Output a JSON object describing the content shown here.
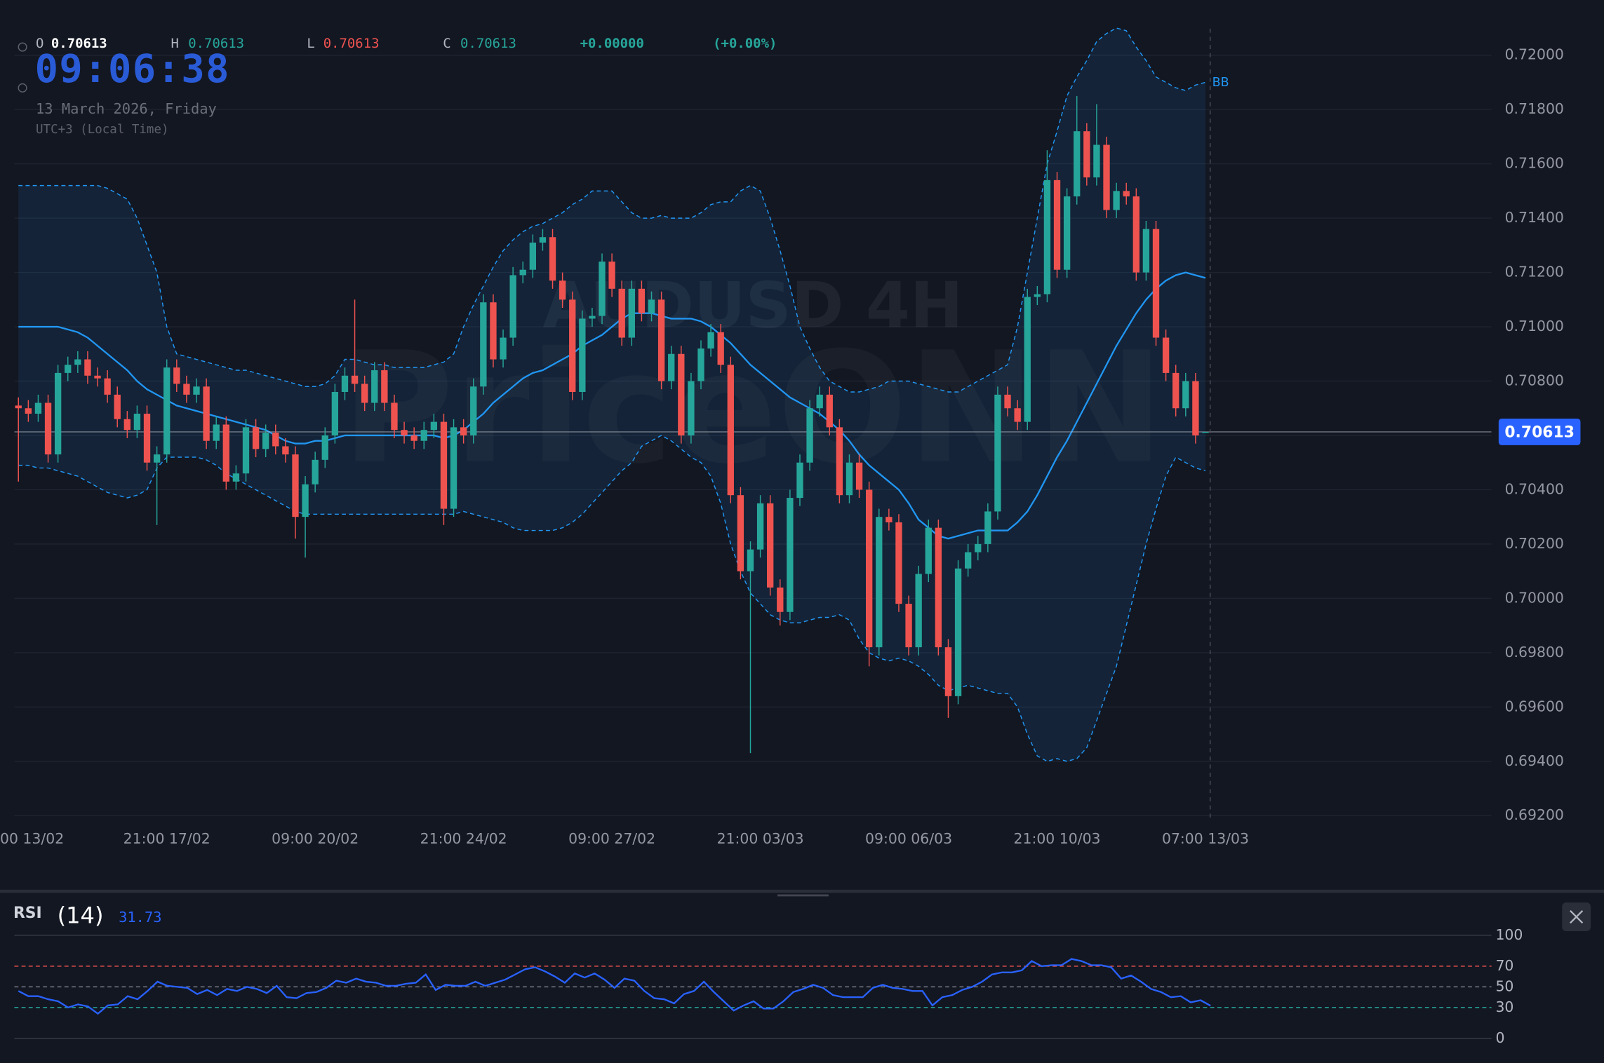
{
  "chart_data": {
    "type": "candlestick",
    "watermark": "AUDUSD 4H",
    "watermark_brand": "PriceONN",
    "ohlc": [
      {
        "name": "O",
        "value": 0.70613
      },
      {
        "name": "H",
        "value": 0.70613
      },
      {
        "name": "L",
        "value": 0.70613
      },
      {
        "name": "C",
        "value": 0.70613
      }
    ],
    "change": {
      "value": 0,
      "label": "+0.00000"
    },
    "change_pct": {
      "value": 0,
      "label": "(+0.00%)"
    },
    "clock": "09:06:38",
    "date": "13 March 2026, Friday",
    "timezone": "UTC+3 (Local Time)",
    "up_color": "#26a69a",
    "down_color": "#ef5350",
    "last_price": 0.70613,
    "ylim": [
      0.692,
      0.72
    ],
    "yticks": [
      {
        "value": 0.692,
        "label": "0.69200"
      },
      {
        "value": 0.694,
        "label": "0.69400"
      },
      {
        "value": 0.696,
        "label": "0.69600"
      },
      {
        "value": 0.698,
        "label": "0.69800"
      },
      {
        "value": 0.7,
        "label": "0.70000"
      },
      {
        "value": 0.702,
        "label": "0.70200"
      },
      {
        "value": 0.704,
        "label": "0.70400"
      },
      {
        "value": 0.706,
        "label": "0.70600"
      },
      {
        "value": 0.708,
        "label": "0.70800"
      },
      {
        "value": 0.71,
        "label": "0.71000"
      },
      {
        "value": 0.712,
        "label": "0.71200"
      },
      {
        "value": 0.714,
        "label": "0.71400"
      },
      {
        "value": 0.716,
        "label": "0.71600"
      },
      {
        "value": 0.718,
        "label": "0.71800"
      },
      {
        "value": 0.72,
        "label": "0.72000"
      }
    ],
    "grid": true,
    "categories": [
      "00 13/02",
      null,
      null,
      null,
      null,
      null,
      null,
      null,
      null,
      null,
      null,
      null,
      null,
      null,
      null,
      "21:00 17/02",
      null,
      null,
      null,
      null,
      null,
      null,
      null,
      null,
      null,
      null,
      null,
      null,
      null,
      null,
      "09:00 20/02",
      null,
      null,
      null,
      null,
      null,
      null,
      null,
      null,
      null,
      null,
      null,
      null,
      null,
      null,
      "21:00 24/02",
      null,
      null,
      null,
      null,
      null,
      null,
      null,
      null,
      null,
      null,
      null,
      null,
      null,
      null,
      "09:00 27/02",
      null,
      null,
      null,
      null,
      null,
      null,
      null,
      null,
      null,
      null,
      null,
      null,
      null,
      null,
      "21:00 03/03",
      null,
      null,
      null,
      null,
      null,
      null,
      null,
      null,
      null,
      null,
      null,
      null,
      null,
      null,
      "09:00 06/03",
      null,
      null,
      null,
      null,
      null,
      null,
      null,
      null,
      null,
      null,
      null,
      null,
      null,
      null,
      "21:00 10/03",
      null,
      null,
      null,
      null,
      null,
      null,
      null,
      null,
      null,
      null,
      null,
      null,
      null,
      null,
      "07:00 13/03"
    ],
    "candles": {
      "open": [
        0.7071,
        0.707,
        0.7068,
        0.7072,
        0.7053,
        0.7083,
        0.7086,
        0.7088,
        0.7082,
        0.7081,
        0.7075,
        0.7066,
        0.7062,
        0.7068,
        0.705,
        0.7053,
        0.7085,
        0.7079,
        0.7075,
        0.7078,
        0.7058,
        0.7064,
        0.7043,
        0.7046,
        0.7063,
        0.7055,
        0.7061,
        0.7056,
        0.7053,
        0.703,
        0.7042,
        0.7051,
        0.706,
        0.7076,
        0.7082,
        0.7079,
        0.7072,
        0.7084,
        0.7072,
        0.7062,
        0.706,
        0.7058,
        0.7062,
        0.7065,
        0.7033,
        0.7063,
        0.706,
        0.7078,
        0.7109,
        0.7088,
        0.7096,
        0.7119,
        0.7121,
        0.7131,
        0.7133,
        0.7117,
        0.711,
        0.7076,
        0.7103,
        0.7104,
        0.7124,
        0.7114,
        0.7096,
        0.7114,
        0.7105,
        0.711,
        0.708,
        0.709,
        0.706,
        0.708,
        0.7092,
        0.7098,
        0.7086,
        0.7038,
        0.701,
        0.7018,
        0.7035,
        0.7004,
        0.6995,
        0.7037,
        0.705,
        0.707,
        0.7075,
        0.7063,
        0.7038,
        0.705,
        0.704,
        0.6982,
        0.703,
        0.7028,
        0.6998,
        0.6982,
        0.7009,
        0.7026,
        0.6982,
        0.6964,
        0.7011,
        0.7017,
        0.702,
        0.7032,
        0.7075,
        0.707,
        0.7065,
        0.7111,
        0.7112,
        0.7154,
        0.7121,
        0.7148,
        0.7172,
        0.7155,
        0.7167,
        0.7143,
        0.715,
        0.7148,
        0.712,
        0.7136,
        0.7096,
        0.7083,
        0.707,
        0.708,
        0.70613
      ],
      "high": [
        0.7074,
        0.7073,
        0.7075,
        0.7075,
        0.7086,
        0.7089,
        0.7091,
        0.7091,
        0.7085,
        0.7084,
        0.7078,
        0.7069,
        0.7071,
        0.7071,
        0.7056,
        0.7088,
        0.7088,
        0.7082,
        0.7081,
        0.7081,
        0.7067,
        0.7067,
        0.7049,
        0.7066,
        0.7066,
        0.7064,
        0.7064,
        0.7059,
        0.7056,
        0.7045,
        0.7054,
        0.7063,
        0.7079,
        0.7085,
        0.711,
        0.7082,
        0.7087,
        0.7087,
        0.7075,
        0.7065,
        0.7063,
        0.7065,
        0.7068,
        0.7068,
        0.7066,
        0.7066,
        0.7081,
        0.7112,
        0.7112,
        0.7099,
        0.7122,
        0.7124,
        0.7134,
        0.7136,
        0.7136,
        0.712,
        0.7113,
        0.7106,
        0.7107,
        0.7127,
        0.7127,
        0.7117,
        0.7117,
        0.7117,
        0.7113,
        0.7113,
        0.7093,
        0.7093,
        0.7083,
        0.7095,
        0.7101,
        0.7101,
        0.7089,
        0.7041,
        0.7021,
        0.7038,
        0.7038,
        0.7007,
        0.704,
        0.7053,
        0.7073,
        0.7078,
        0.7078,
        0.7066,
        0.7053,
        0.7053,
        0.7043,
        0.7033,
        0.7033,
        0.7031,
        0.7001,
        0.7012,
        0.7029,
        0.7029,
        0.6985,
        0.7014,
        0.702,
        0.7023,
        0.7035,
        0.7078,
        0.7078,
        0.7073,
        0.7114,
        0.7115,
        0.7165,
        0.7157,
        0.7151,
        0.7185,
        0.7175,
        0.7182,
        0.717,
        0.7153,
        0.7153,
        0.7151,
        0.7139,
        0.7139,
        0.7099,
        0.7086,
        0.7083,
        0.7083,
        0.70613
      ],
      "low": [
        0.7043,
        0.7065,
        0.7065,
        0.705,
        0.705,
        0.708,
        0.7083,
        0.7079,
        0.7078,
        0.7072,
        0.7063,
        0.7059,
        0.7059,
        0.7047,
        0.7027,
        0.705,
        0.7076,
        0.7072,
        0.7072,
        0.7055,
        0.7055,
        0.704,
        0.704,
        0.7043,
        0.7052,
        0.7052,
        0.7053,
        0.705,
        0.7022,
        0.7015,
        0.7039,
        0.7048,
        0.7057,
        0.7073,
        0.7076,
        0.7069,
        0.7069,
        0.7069,
        0.7059,
        0.7057,
        0.7055,
        0.7055,
        0.7059,
        0.7027,
        0.703,
        0.7057,
        0.7057,
        0.7075,
        0.7085,
        0.7085,
        0.7093,
        0.7116,
        0.7118,
        0.7128,
        0.7114,
        0.7107,
        0.7073,
        0.7073,
        0.71,
        0.7101,
        0.7111,
        0.7093,
        0.7093,
        0.7102,
        0.7102,
        0.7077,
        0.7077,
        0.7057,
        0.7057,
        0.7077,
        0.7089,
        0.7083,
        0.7035,
        0.7007,
        0.6943,
        0.7015,
        0.7001,
        0.699,
        0.6992,
        0.7034,
        0.7047,
        0.7067,
        0.706,
        0.7035,
        0.7035,
        0.7037,
        0.6975,
        0.6979,
        0.7025,
        0.6995,
        0.6979,
        0.6979,
        0.7006,
        0.6979,
        0.6956,
        0.6961,
        0.7008,
        0.7014,
        0.7017,
        0.7029,
        0.7067,
        0.7062,
        0.7062,
        0.7108,
        0.7109,
        0.7118,
        0.7118,
        0.7145,
        0.7152,
        0.7152,
        0.714,
        0.714,
        0.7145,
        0.7117,
        0.7117,
        0.7093,
        0.708,
        0.7067,
        0.7067,
        0.7057,
        0.70613
      ],
      "close": [
        0.707,
        0.7068,
        0.7072,
        0.7053,
        0.7083,
        0.7086,
        0.7088,
        0.7082,
        0.7081,
        0.7075,
        0.7066,
        0.7062,
        0.7068,
        0.705,
        0.7053,
        0.7085,
        0.7079,
        0.7075,
        0.7078,
        0.7058,
        0.7064,
        0.7043,
        0.7046,
        0.7063,
        0.7055,
        0.7061,
        0.7056,
        0.7053,
        0.703,
        0.7042,
        0.7051,
        0.706,
        0.7076,
        0.7082,
        0.7079,
        0.7072,
        0.7084,
        0.7072,
        0.7062,
        0.706,
        0.7058,
        0.7062,
        0.7065,
        0.7033,
        0.7063,
        0.706,
        0.7078,
        0.7109,
        0.7088,
        0.7096,
        0.7119,
        0.7121,
        0.7131,
        0.7133,
        0.7117,
        0.711,
        0.7076,
        0.7103,
        0.7104,
        0.7124,
        0.7114,
        0.7096,
        0.7114,
        0.7105,
        0.711,
        0.708,
        0.709,
        0.706,
        0.708,
        0.7092,
        0.7098,
        0.7086,
        0.7038,
        0.701,
        0.7018,
        0.7035,
        0.7004,
        0.6995,
        0.7037,
        0.705,
        0.707,
        0.7075,
        0.7063,
        0.7038,
        0.705,
        0.704,
        0.6982,
        0.703,
        0.7028,
        0.6998,
        0.6982,
        0.7009,
        0.7026,
        0.6982,
        0.6964,
        0.7011,
        0.7017,
        0.702,
        0.7032,
        0.7075,
        0.707,
        0.7065,
        0.7111,
        0.7112,
        0.7154,
        0.7121,
        0.7148,
        0.7172,
        0.7155,
        0.7167,
        0.7143,
        0.715,
        0.7148,
        0.712,
        0.7136,
        0.7096,
        0.7083,
        0.707,
        0.708,
        0.706,
        0.70613
      ]
    },
    "bollinger": {
      "name": "BB",
      "color": "#2196f3",
      "upper": [
        0.7152,
        0.7152,
        0.7152,
        0.7152,
        0.7152,
        0.7152,
        0.7152,
        0.7152,
        0.7152,
        0.7151,
        0.7149,
        0.7147,
        0.714,
        0.713,
        0.712,
        0.71,
        0.709,
        0.7089,
        0.7088,
        0.7087,
        0.7086,
        0.7085,
        0.7084,
        0.7084,
        0.7083,
        0.7082,
        0.7081,
        0.708,
        0.7079,
        0.7078,
        0.7078,
        0.7079,
        0.7082,
        0.7088,
        0.7088,
        0.7087,
        0.7086,
        0.7086,
        0.7085,
        0.7085,
        0.7085,
        0.7085,
        0.7086,
        0.7087,
        0.709,
        0.71,
        0.7108,
        0.7115,
        0.7122,
        0.7128,
        0.7132,
        0.7135,
        0.7137,
        0.7138,
        0.714,
        0.7142,
        0.7145,
        0.7147,
        0.715,
        0.715,
        0.715,
        0.7146,
        0.7142,
        0.714,
        0.714,
        0.7141,
        0.714,
        0.714,
        0.714,
        0.7142,
        0.7145,
        0.7146,
        0.7146,
        0.715,
        0.7152,
        0.715,
        0.714,
        0.7128,
        0.7115,
        0.71,
        0.7092,
        0.7085,
        0.708,
        0.7078,
        0.7076,
        0.7076,
        0.7077,
        0.7078,
        0.708,
        0.708,
        0.708,
        0.7079,
        0.7078,
        0.7077,
        0.7076,
        0.7076,
        0.7078,
        0.708,
        0.7082,
        0.7084,
        0.7086,
        0.71,
        0.712,
        0.714,
        0.716,
        0.7172,
        0.7185,
        0.7192,
        0.7198,
        0.7205,
        0.7208,
        0.721,
        0.7209,
        0.7203,
        0.7198,
        0.7192,
        0.719,
        0.7188,
        0.7187,
        0.7189,
        0.719
      ],
      "middle": [
        0.71,
        0.71,
        0.71,
        0.71,
        0.71,
        0.7099,
        0.7098,
        0.7096,
        0.7093,
        0.709,
        0.7087,
        0.7084,
        0.708,
        0.7077,
        0.7075,
        0.7073,
        0.7071,
        0.707,
        0.7069,
        0.7068,
        0.7067,
        0.7066,
        0.7065,
        0.7064,
        0.7063,
        0.7062,
        0.706,
        0.7058,
        0.7057,
        0.7057,
        0.7058,
        0.7058,
        0.7059,
        0.706,
        0.706,
        0.706,
        0.706,
        0.706,
        0.706,
        0.706,
        0.706,
        0.706,
        0.706,
        0.7059,
        0.706,
        0.7062,
        0.7065,
        0.7068,
        0.7072,
        0.7075,
        0.7078,
        0.7081,
        0.7083,
        0.7084,
        0.7086,
        0.7088,
        0.709,
        0.7093,
        0.7095,
        0.7097,
        0.71,
        0.7103,
        0.7105,
        0.7105,
        0.7105,
        0.7104,
        0.7103,
        0.7103,
        0.7103,
        0.7102,
        0.71,
        0.7097,
        0.7094,
        0.709,
        0.7086,
        0.7083,
        0.708,
        0.7077,
        0.7074,
        0.7072,
        0.707,
        0.7068,
        0.7065,
        0.7062,
        0.7058,
        0.7053,
        0.7049,
        0.7046,
        0.7043,
        0.704,
        0.7035,
        0.7029,
        0.7026,
        0.7023,
        0.7022,
        0.7023,
        0.7024,
        0.7025,
        0.7025,
        0.7025,
        0.7025,
        0.7028,
        0.7032,
        0.7038,
        0.7045,
        0.7052,
        0.7058,
        0.7065,
        0.7072,
        0.7079,
        0.7086,
        0.7093,
        0.7099,
        0.7105,
        0.711,
        0.7114,
        0.7117,
        0.7119,
        0.712,
        0.7119,
        0.7118
      ],
      "lower": [
        0.7049,
        0.7049,
        0.7048,
        0.7048,
        0.7047,
        0.7046,
        0.7045,
        0.7043,
        0.7041,
        0.7039,
        0.7038,
        0.7037,
        0.7038,
        0.704,
        0.7048,
        0.7052,
        0.7052,
        0.7052,
        0.7052,
        0.7051,
        0.7049,
        0.7046,
        0.7044,
        0.7042,
        0.704,
        0.7038,
        0.7036,
        0.7034,
        0.7032,
        0.7031,
        0.7031,
        0.7031,
        0.7031,
        0.7031,
        0.7031,
        0.7031,
        0.7031,
        0.7031,
        0.7031,
        0.7031,
        0.7031,
        0.7031,
        0.7031,
        0.7031,
        0.7031,
        0.7032,
        0.7031,
        0.703,
        0.7029,
        0.7028,
        0.7026,
        0.7025,
        0.7025,
        0.7025,
        0.7025,
        0.7026,
        0.7028,
        0.7031,
        0.7035,
        0.7039,
        0.7043,
        0.7047,
        0.705,
        0.7056,
        0.7058,
        0.706,
        0.7058,
        0.7055,
        0.7052,
        0.705,
        0.7045,
        0.7035,
        0.702,
        0.701,
        0.7002,
        0.6998,
        0.6994,
        0.6992,
        0.6991,
        0.6991,
        0.6992,
        0.6993,
        0.6993,
        0.6994,
        0.6992,
        0.6985,
        0.698,
        0.6978,
        0.6977,
        0.6978,
        0.6977,
        0.6975,
        0.6972,
        0.6968,
        0.6966,
        0.6967,
        0.6968,
        0.6967,
        0.6966,
        0.6965,
        0.6965,
        0.696,
        0.695,
        0.6942,
        0.694,
        0.6941,
        0.694,
        0.6941,
        0.6945,
        0.6955,
        0.6965,
        0.6975,
        0.699,
        0.7005,
        0.702,
        0.7033,
        0.7045,
        0.7052,
        0.705,
        0.7048,
        0.7047
      ]
    },
    "rsi": {
      "title": "RSI",
      "period_label": "(14)",
      "color": "#2962ff",
      "ylim": [
        0,
        100
      ],
      "yticks": [
        0,
        30,
        50,
        70,
        100
      ],
      "tick_colors": [
        "#363a45",
        "#26a69a",
        "#787b86",
        "#ef5350",
        "#363a45"
      ],
      "values": [
        46,
        41,
        41,
        38,
        36,
        30,
        33,
        31,
        24,
        32,
        33,
        41,
        38,
        46,
        55,
        51,
        50,
        49,
        43,
        47,
        42,
        48,
        46,
        50,
        48,
        44,
        51,
        40,
        39,
        44,
        45,
        49,
        56,
        54,
        58,
        55,
        54,
        51,
        51,
        53,
        54,
        62,
        47,
        52,
        51,
        51,
        55,
        51,
        54,
        57,
        62,
        67,
        69,
        65,
        60,
        54,
        63,
        59,
        63,
        57,
        49,
        58,
        56,
        46,
        39,
        38,
        34,
        43,
        46,
        55,
        45,
        36,
        27,
        32,
        36,
        29,
        29,
        36,
        45,
        48,
        52,
        49,
        42,
        40,
        40,
        40,
        49,
        52,
        49,
        48,
        46,
        46,
        32,
        40,
        42,
        47,
        50,
        55,
        62,
        64,
        64,
        66,
        75,
        70,
        71,
        71,
        77,
        75,
        71,
        71,
        69,
        58,
        61,
        55,
        48,
        45,
        40,
        41,
        35,
        37,
        31.73
      ]
    }
  }
}
